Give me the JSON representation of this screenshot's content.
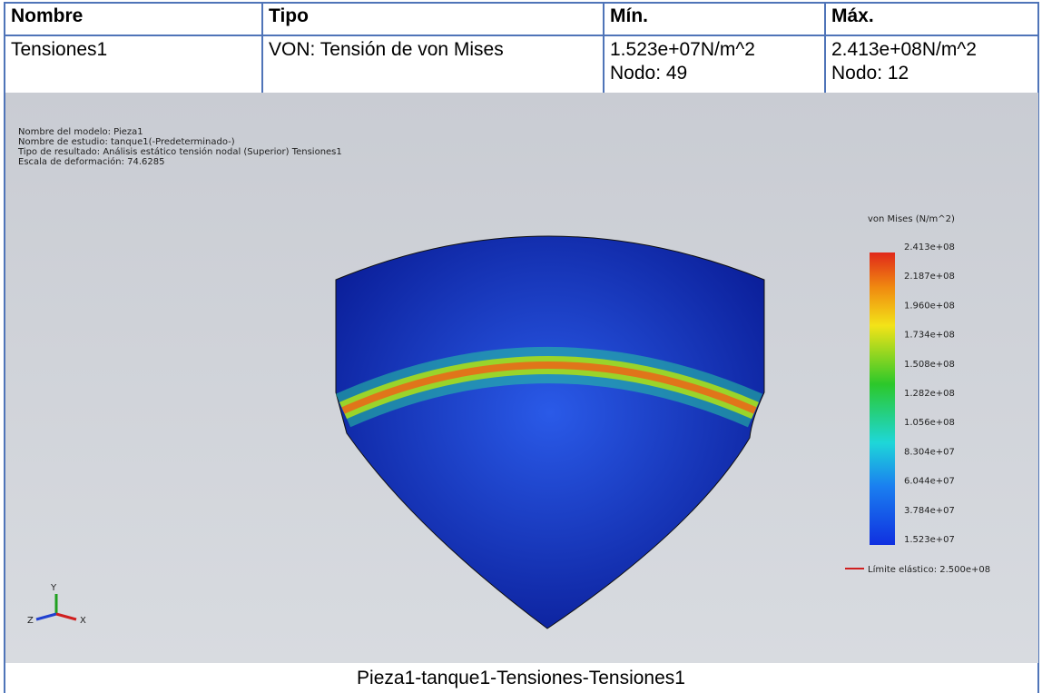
{
  "table": {
    "headers": [
      "Nombre",
      "Tipo",
      "Mín.",
      "Máx."
    ],
    "rows": [
      [
        [
          "Tensiones1"
        ],
        [
          "VON: Tensión de von Mises"
        ],
        [
          "1.523e+07N/m^2",
          "Nodo: 49"
        ],
        [
          "2.413e+08N/m^2",
          "Nodo: 12"
        ]
      ]
    ]
  },
  "image": {
    "info": [
      "Nombre del modelo: Pieza1",
      "Nombre de estudio: tanque1(-Predeterminado-)",
      "Tipo de resultado: Análisis estático tensión nodal (Superior) Tensiones1",
      "Escala de deformación: 74.6285"
    ],
    "legend_title": "von Mises (N/m^2)",
    "legend_labels": [
      "2.413e+08",
      "2.187e+08",
      "1.960e+08",
      "1.734e+08",
      "1.508e+08",
      "1.282e+08",
      "1.056e+08",
      "8.304e+07",
      "6.044e+07",
      "3.784e+07",
      "1.523e+07"
    ],
    "limit": "Límite elástico: 2.500e+08",
    "axes": [
      "Y",
      "Z",
      "X"
    ]
  },
  "caption": "Pieza1-tanque1-Tensiones-Tensiones1"
}
